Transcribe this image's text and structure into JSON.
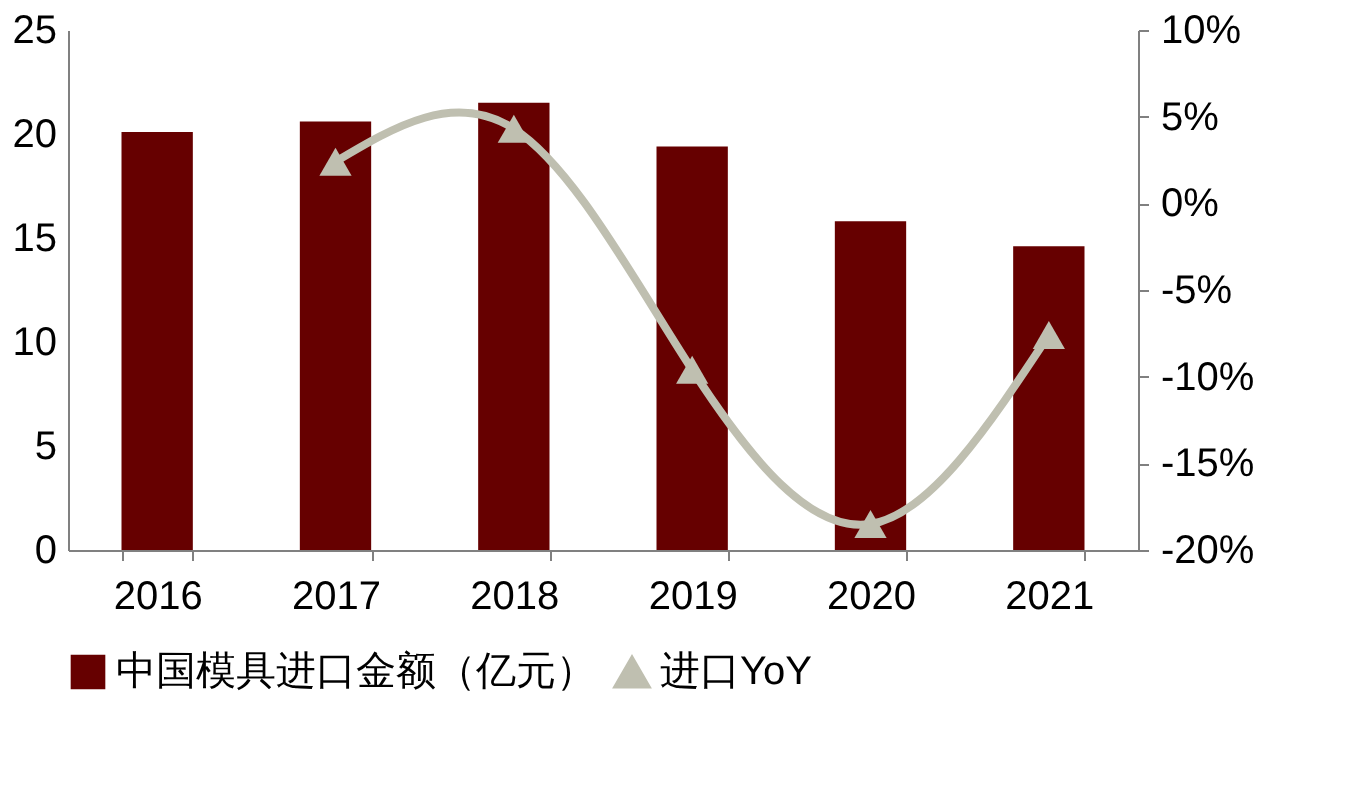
{
  "chart_data": {
    "type": "bar",
    "categories": [
      "2016",
      "2017",
      "2018",
      "2019",
      "2020",
      "2021"
    ],
    "series": [
      {
        "name": "中国模具进口金额（亿元）",
        "color": "#660000",
        "values": [
          20.1,
          20.6,
          21.5,
          19.4,
          15.8,
          14.6
        ]
      },
      {
        "name": "进口YoY",
        "type": "line",
        "axis": "y2",
        "color": "#bfbfb0",
        "marker": "triangle",
        "values": [
          null,
          2.4,
          4.3,
          -9.6,
          -18.5,
          -7.6
        ]
      }
    ],
    "ylim": [
      0,
      25
    ],
    "yticks": [
      0,
      5,
      10,
      15,
      20,
      25
    ],
    "y2lim": [
      -20,
      10
    ],
    "y2ticks": [
      {
        "value": -20,
        "label": "-20%"
      },
      {
        "value": -15,
        "label": "-15%"
      },
      {
        "value": -10,
        "label": "-10%"
      },
      {
        "value": -5,
        "label": "-5%"
      },
      {
        "value": 0,
        "label": "0%"
      },
      {
        "value": 5,
        "label": "5%"
      },
      {
        "value": 10,
        "label": "10%"
      }
    ],
    "grid": false,
    "legend": "bottom"
  }
}
